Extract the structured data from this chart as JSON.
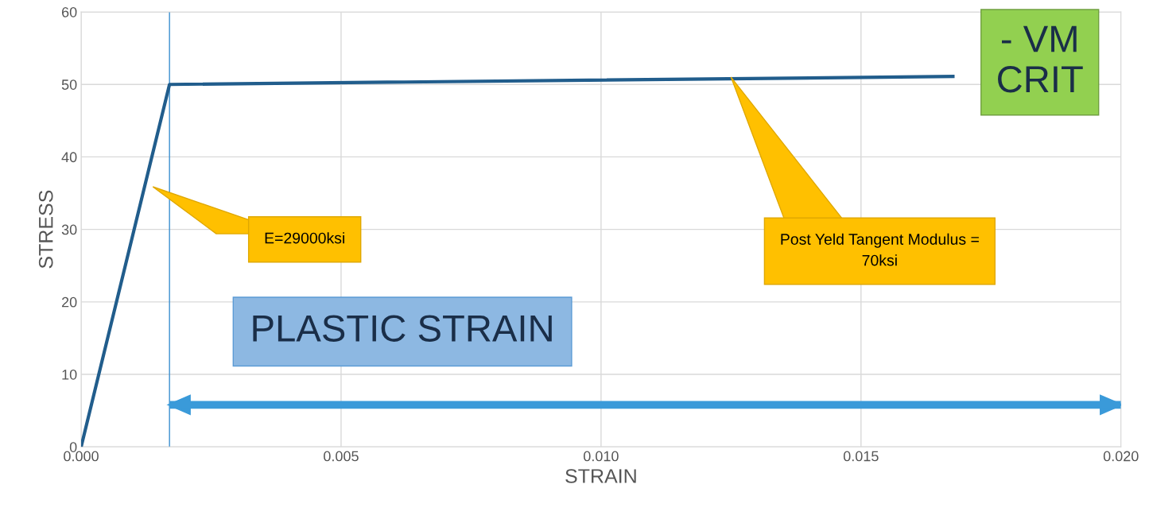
{
  "chart_data": {
    "type": "line",
    "xlabel": "STRAIN",
    "ylabel": "STRESS",
    "series": [
      {
        "color": "#215d8c",
        "x": [
          0,
          0.0017,
          0.0168
        ],
        "values": [
          0,
          50,
          51.1
        ]
      },
      {
        "color": "#3a9ad9",
        "x": [
          0.0017,
          0.02
        ],
        "values": [
          5.8,
          5.8
        ]
      }
    ],
    "xlim": [
      0,
      0.02
    ],
    "ylim": [
      0,
      60
    ],
    "xticks": [
      {
        "value": 0,
        "label": "0.000"
      },
      {
        "value": 0.005,
        "label": "0.005"
      },
      {
        "value": 0.01,
        "label": "0.010"
      },
      {
        "value": 0.015,
        "label": "0.015"
      },
      {
        "value": 0.02,
        "label": "0.020"
      }
    ],
    "yticks": [
      0,
      10,
      20,
      30,
      40,
      50,
      60
    ],
    "grid": true,
    "marker": "none",
    "line_style": "solid",
    "ref_lines": [
      {
        "axis": "x",
        "value": 0.0017,
        "color": "#3a8fd0"
      }
    ],
    "annotations": [
      "E=29000ksi",
      "Post Yeld Tangent Modulus =\n70ksi",
      "PLASTIC STRAIN",
      "- VM\nCRIT"
    ]
  }
}
